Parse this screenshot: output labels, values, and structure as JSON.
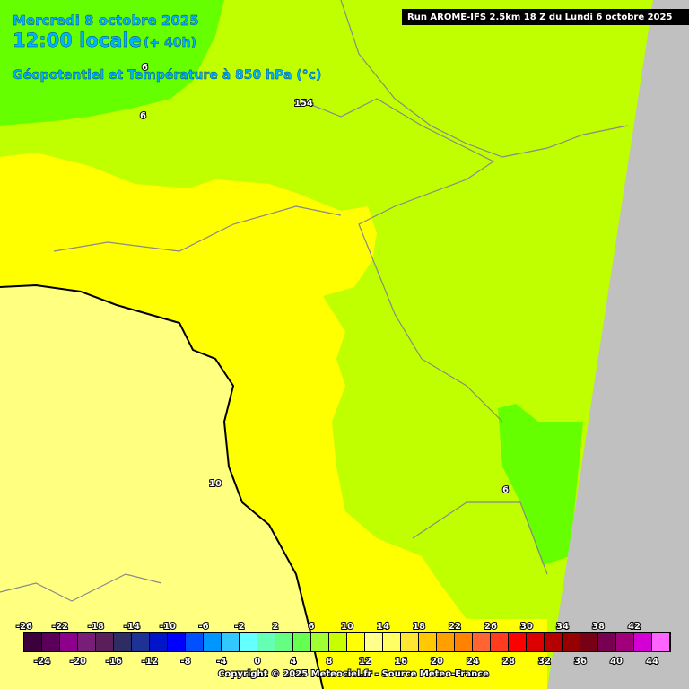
{
  "header": {
    "date": "Mercredi 8 octobre 2025",
    "time": "12:00 locale",
    "lead": "(+ 40h)",
    "field": "Géopotentiel et Température à 850 hPa (°c)",
    "run": "Run AROME-IFS 2.5km 18 Z du Lundi 6 octobre 2025"
  },
  "contour_labels": [
    "6",
    "6",
    "154",
    "10",
    "6"
  ],
  "colorbar": {
    "top_labels": [
      -26,
      -22,
      -18,
      -14,
      -10,
      -6,
      -2,
      2,
      6,
      10,
      14,
      18,
      22,
      26,
      30,
      34,
      38,
      42
    ],
    "bottom_labels": [
      -24,
      -20,
      -16,
      -12,
      -8,
      -4,
      0,
      4,
      8,
      12,
      16,
      20,
      24,
      28,
      32,
      36,
      40,
      44
    ],
    "colors": [
      "#3c003c",
      "#5a005a",
      "#8c008c",
      "#781e78",
      "#5a1e5a",
      "#2d2d64",
      "#1e3296",
      "#0014c8",
      "#0000ff",
      "#0050ff",
      "#0096ff",
      "#32c8ff",
      "#64ffff",
      "#64ffb4",
      "#64ff82",
      "#64ff50",
      "#a0ff32",
      "#c8ff00",
      "#ffff00",
      "#ffff8c",
      "#ffff64",
      "#ffe632",
      "#ffc800",
      "#ffa000",
      "#ff8200",
      "#ff6432",
      "#ff3c1e",
      "#ff0000",
      "#dc0000",
      "#b40000",
      "#960000",
      "#780014",
      "#780050",
      "#a0007a",
      "#d200d2",
      "#ff64ff"
    ]
  },
  "footer": {
    "copyright": "Copyright © 2025 Meteociel.fr - Source Meteo-France"
  }
}
